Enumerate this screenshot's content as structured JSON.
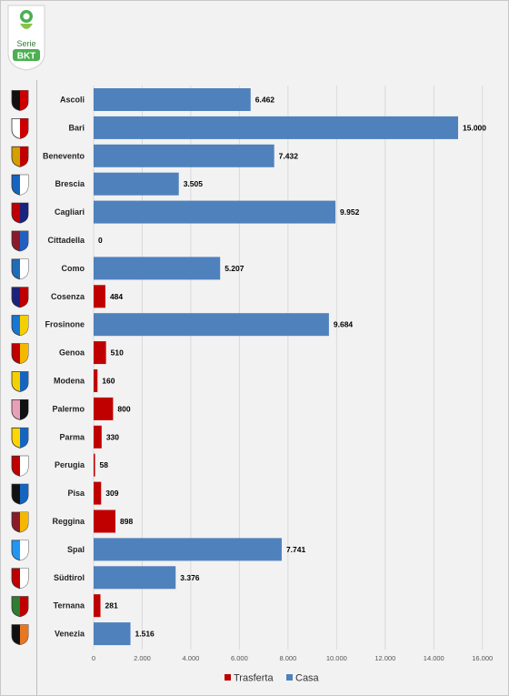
{
  "header": {
    "logo_text_top": "Serie",
    "logo_text_bottom": "BKT"
  },
  "colors": {
    "casa": "#4f81bd",
    "trasferta": "#c00000",
    "grid": "#d9d9d9",
    "background": "#f2f2f2"
  },
  "chart_data": {
    "type": "bar",
    "orientation": "horizontal",
    "title": "",
    "xlabel": "",
    "ylabel": "",
    "xlim": [
      0,
      16000
    ],
    "x_ticks": [
      "0",
      "2.000",
      "4.000",
      "6.000",
      "8.000",
      "10.000",
      "12.000",
      "14.000",
      "16.000"
    ],
    "grid": true,
    "legend_position": "bottom",
    "legend": [
      "Trasferta",
      "Casa"
    ],
    "categories": [
      "Ascoli",
      "Bari",
      "Benevento",
      "Brescia",
      "Cagliari",
      "Cittadella",
      "Como",
      "Cosenza",
      "Frosinone",
      "Genoa",
      "Modena",
      "Palermo",
      "Parma",
      "Perugia",
      "Pisa",
      "Reggina",
      "Spal",
      "Südtirol",
      "Ternana",
      "Venezia"
    ],
    "values": [
      6462,
      15000,
      7432,
      3505,
      9952,
      0,
      5207,
      484,
      9684,
      510,
      160,
      800,
      330,
      58,
      309,
      898,
      7741,
      3376,
      281,
      1516
    ],
    "value_labels": [
      "6.462",
      "15.000",
      "7.432",
      "3.505",
      "9.952",
      "0",
      "5.207",
      "484",
      "9.684",
      "510",
      "160",
      "800",
      "330",
      "58",
      "309",
      "898",
      "7.741",
      "3.376",
      "281",
      "1.516"
    ],
    "series_of_bar": [
      "Casa",
      "Casa",
      "Casa",
      "Casa",
      "Casa",
      "Trasferta",
      "Casa",
      "Trasferta",
      "Casa",
      "Trasferta",
      "Trasferta",
      "Trasferta",
      "Trasferta",
      "Trasferta",
      "Trasferta",
      "Trasferta",
      "Casa",
      "Casa",
      "Trasferta",
      "Casa"
    ],
    "team_icons": [
      "ascoli-crest-icon",
      "bari-crest-icon",
      "benevento-crest-icon",
      "brescia-crest-icon",
      "cagliari-crest-icon",
      "cittadella-crest-icon",
      "como-crest-icon",
      "cosenza-crest-icon",
      "frosinone-crest-icon",
      "genoa-crest-icon",
      "modena-crest-icon",
      "palermo-crest-icon",
      "parma-crest-icon",
      "perugia-crest-icon",
      "pisa-crest-icon",
      "reggina-crest-icon",
      "spal-crest-icon",
      "sudtirol-crest-icon",
      "ternana-crest-icon",
      "venezia-crest-icon"
    ],
    "team_icon_colors": [
      [
        "#111111",
        "#cc0000"
      ],
      [
        "#ffffff",
        "#cc0000"
      ],
      [
        "#d4a000",
        "#c00000"
      ],
      [
        "#1565c0",
        "#ffffff"
      ],
      [
        "#c00000",
        "#1a237e"
      ],
      [
        "#8b1a2b",
        "#2060c0"
      ],
      [
        "#1e6bb8",
        "#ffffff"
      ],
      [
        "#1a237e",
        "#c00000"
      ],
      [
        "#1976d2",
        "#f5d000"
      ],
      [
        "#c00000",
        "#f5b800"
      ],
      [
        "#f5d000",
        "#1565c0"
      ],
      [
        "#e8a0b8",
        "#111111"
      ],
      [
        "#ffd600",
        "#1565c0"
      ],
      [
        "#c00000",
        "#ffffff"
      ],
      [
        "#111111",
        "#1565c0"
      ],
      [
        "#8b1a2b",
        "#f5b800"
      ],
      [
        "#2196f3",
        "#ffffff"
      ],
      [
        "#c00000",
        "#ffffff"
      ],
      [
        "#2e7d32",
        "#c00000"
      ],
      [
        "#111111",
        "#e87722"
      ]
    ]
  }
}
